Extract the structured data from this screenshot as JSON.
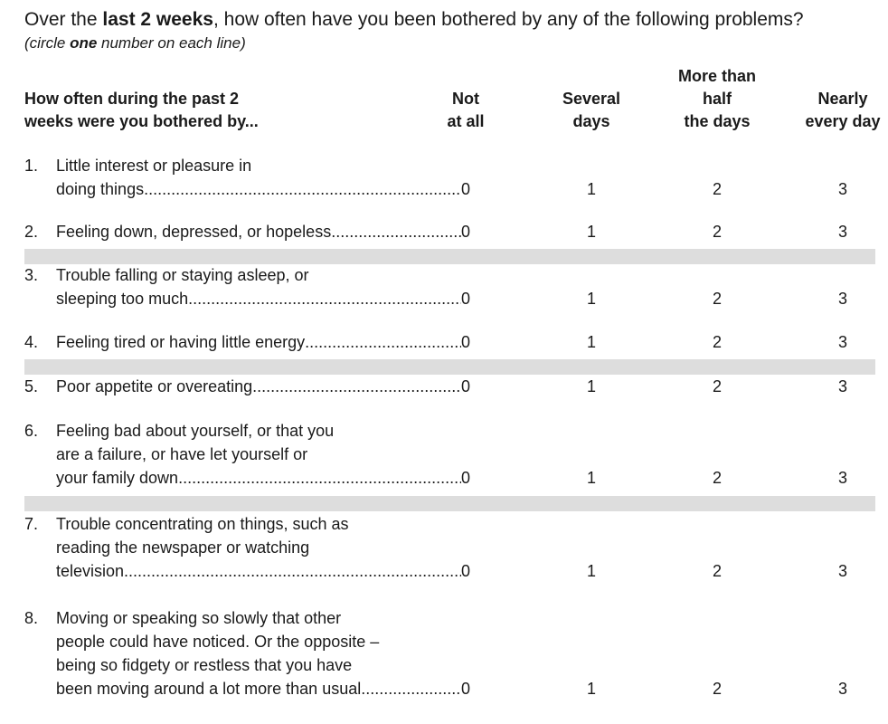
{
  "intro": {
    "prefix": "Over the ",
    "bold": "last 2 weeks",
    "suffix": ", how often have you been bothered by any of the following problems?"
  },
  "instruction": {
    "prefix": "(circle ",
    "bold": "one",
    "suffix": " number on each line)"
  },
  "table": {
    "question_header": [
      "How often during the past 2",
      "weeks were you bothered by..."
    ],
    "columns": [
      {
        "lines": [
          "Not",
          "at all"
        ]
      },
      {
        "lines": [
          "Several",
          "days"
        ]
      },
      {
        "lines": [
          "More than",
          "half",
          "the days"
        ]
      },
      {
        "lines": [
          "Nearly",
          "every day"
        ]
      }
    ],
    "items": [
      {
        "num": "1.",
        "lines": [
          "Little interest or pleasure in",
          "doing things"
        ],
        "scores": [
          "0",
          "1",
          "2",
          "3"
        ]
      },
      {
        "num": "2.",
        "lines": [
          "Feeling down, depressed, or hopeless"
        ],
        "scores": [
          "0",
          "1",
          "2",
          "3"
        ]
      },
      {
        "num": "3.",
        "lines": [
          "Trouble falling or staying asleep, or",
          "sleeping too much"
        ],
        "scores": [
          "0",
          "1",
          "2",
          "3"
        ]
      },
      {
        "num": "4.",
        "lines": [
          "Feeling tired or having little energy"
        ],
        "scores": [
          "0",
          "1",
          "2",
          "3"
        ]
      },
      {
        "num": "5.",
        "lines": [
          "Poor appetite or overeating"
        ],
        "scores": [
          "0",
          "1",
          "2",
          "3"
        ]
      },
      {
        "num": "6.",
        "lines": [
          "Feeling bad about yourself, or that you",
          "are a failure, or have let yourself or",
          "your family down"
        ],
        "scores": [
          "0",
          "1",
          "2",
          "3"
        ]
      },
      {
        "num": "7.",
        "lines": [
          "Trouble concentrating on things, such as",
          "reading the newspaper or watching",
          "television"
        ],
        "scores": [
          "0",
          "1",
          "2",
          "3"
        ]
      },
      {
        "num": "8.",
        "lines": [
          "Moving or speaking so slowly that other",
          "people could have noticed. Or the opposite –",
          "being so fidgety or restless that you have",
          "been moving around a lot more than usual"
        ],
        "scores": [
          "0",
          "1",
          "2",
          "3"
        ]
      }
    ]
  }
}
